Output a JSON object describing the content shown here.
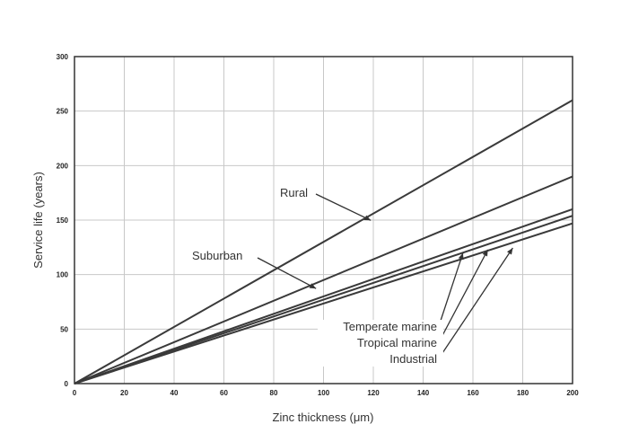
{
  "chart_data": {
    "type": "line",
    "xlabel": "Zinc thickness (μm)",
    "ylabel": "Service life (years)",
    "xlim": [
      0,
      200
    ],
    "ylim": [
      0,
      300
    ],
    "xticks": [
      0,
      20,
      40,
      60,
      80,
      100,
      120,
      140,
      160,
      180,
      200
    ],
    "yticks": [
      0,
      50,
      100,
      150,
      200,
      250,
      300
    ],
    "grid": true,
    "series": [
      {
        "name": "Rural",
        "x": [
          0,
          200
        ],
        "y": [
          0,
          260
        ]
      },
      {
        "name": "Suburban",
        "x": [
          0,
          200
        ],
        "y": [
          0,
          190
        ]
      },
      {
        "name": "Temperate marine",
        "x": [
          0,
          200
        ],
        "y": [
          0,
          160
        ]
      },
      {
        "name": "Tropical marine",
        "x": [
          0,
          200
        ],
        "y": [
          0,
          154
        ]
      },
      {
        "name": "Industrial",
        "x": [
          0,
          200
        ],
        "y": [
          0,
          147
        ]
      }
    ]
  }
}
